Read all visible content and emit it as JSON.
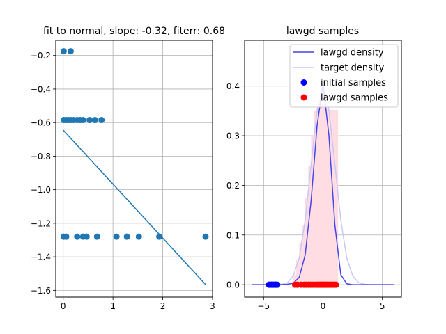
{
  "colors": {
    "scatter": "#1f77b4",
    "fit_line": "#1f77b4",
    "grid": "#b0b0b0",
    "lawgd_density": "#4444ee",
    "target_density": "#c8c8f8",
    "histogram_fill": "#ffdde2",
    "initial_samples": "#0000ff",
    "lawgd_samples": "#ff0000"
  },
  "chart_data": [
    {
      "type": "scatter",
      "title": "fit to normal, slope: -0.32, fiterr: 0.68",
      "xlabel": "",
      "ylabel": "",
      "xlim": [
        -0.15,
        3.0
      ],
      "ylim": [
        -1.64,
        -0.11
      ],
      "grid": true,
      "x_ticks": [
        0,
        1,
        2,
        3
      ],
      "x_tick_labels": [
        "0",
        "1",
        "2",
        "3"
      ],
      "y_ticks": [
        -0.2,
        -0.4,
        -0.6,
        -0.8,
        -1.0,
        -1.2,
        -1.4,
        -1.6
      ],
      "y_tick_labels": [
        "−0.2",
        "−0.4",
        "−0.6",
        "−0.8",
        "−1.0",
        "−1.2",
        "−1.4",
        "−1.6"
      ],
      "points": [
        [
          0.01,
          -0.175
        ],
        [
          0.15,
          -0.175
        ],
        [
          0.01,
          -0.585
        ],
        [
          0.06,
          -0.585
        ],
        [
          0.1,
          -0.585
        ],
        [
          0.15,
          -0.585
        ],
        [
          0.21,
          -0.585
        ],
        [
          0.28,
          -0.585
        ],
        [
          0.34,
          -0.585
        ],
        [
          0.4,
          -0.585
        ],
        [
          0.53,
          -0.585
        ],
        [
          0.64,
          -0.585
        ],
        [
          0.77,
          -0.585
        ],
        [
          0.01,
          -1.28
        ],
        [
          0.06,
          -1.28
        ],
        [
          0.28,
          -1.28
        ],
        [
          0.4,
          -1.28
        ],
        [
          0.47,
          -1.28
        ],
        [
          0.68,
          -1.28
        ],
        [
          1.07,
          -1.28
        ],
        [
          1.28,
          -1.28
        ],
        [
          1.52,
          -1.28
        ],
        [
          1.93,
          -1.28
        ],
        [
          2.86,
          -1.28
        ]
      ],
      "fit_line": {
        "x": [
          0.0,
          2.86
        ],
        "y": [
          -0.645,
          -1.565
        ]
      }
    },
    {
      "type": "line",
      "title": "lawgd samples",
      "xlabel": "",
      "ylabel": "",
      "xlim": [
        -6.6,
        6.6
      ],
      "ylim": [
        -0.025,
        0.492
      ],
      "grid": true,
      "legend_position": "top-right",
      "x_ticks": [
        -5,
        0,
        5
      ],
      "x_tick_labels": [
        "−5",
        "0",
        "5"
      ],
      "y_ticks": [
        0.0,
        0.1,
        0.2,
        0.3,
        0.4
      ],
      "y_tick_labels": [
        "0.0",
        "0.1",
        "0.2",
        "0.3",
        "0.4"
      ],
      "legend": [
        "lawgd density",
        "target density",
        "initial samples",
        "lawgd samples"
      ],
      "series": [
        {
          "name": "lawgd density",
          "x": [
            -6.0,
            -4.5,
            -4.0,
            -3.5,
            -3.0,
            -2.5,
            -2.0,
            -1.5,
            -1.0,
            -0.5,
            0.0,
            0.5,
            1.0,
            1.5,
            2.0,
            2.5,
            3.0,
            4.0,
            6.0
          ],
          "y": [
            0.0,
            0.0,
            0.0,
            0.0,
            0.001,
            0.003,
            0.015,
            0.06,
            0.17,
            0.32,
            0.405,
            0.3,
            0.12,
            0.02,
            0.002,
            0.0,
            0.0,
            0.0,
            0.0
          ]
        },
        {
          "name": "target density",
          "x": [
            -6.0,
            -4.0,
            -3.5,
            -3.0,
            -2.5,
            -2.0,
            -1.5,
            -1.0,
            -0.5,
            0.0,
            0.5,
            1.0,
            1.5,
            2.0,
            2.5,
            3.0,
            3.5,
            4.0,
            6.0
          ],
          "y": [
            0.0,
            0.0,
            0.001,
            0.004,
            0.018,
            0.054,
            0.13,
            0.242,
            0.352,
            0.399,
            0.352,
            0.242,
            0.13,
            0.054,
            0.018,
            0.004,
            0.001,
            0.0,
            0.0
          ]
        }
      ],
      "histogram": {
        "bin_edges": [
          -2.5,
          -2.25,
          -2.0,
          -1.75,
          -1.5,
          -1.25,
          -1.0,
          -0.75,
          -0.5,
          -0.25,
          0.0,
          0.25,
          0.5,
          0.75,
          1.0,
          1.25
        ],
        "heights": [
          0.02,
          0.05,
          0.085,
          0.12,
          0.175,
          0.24,
          0.3,
          0.35,
          0.37,
          0.38,
          0.39,
          0.37,
          0.352,
          0.352,
          0.352
        ]
      },
      "scatter_series": [
        {
          "name": "initial samples",
          "x": [
            -4.55,
            -4.48,
            -4.4,
            -4.32,
            -4.25,
            -4.18,
            -4.1,
            -4.05,
            -3.98,
            -3.9,
            -3.85
          ],
          "y": [
            0,
            0,
            0,
            0,
            0,
            0,
            0,
            0,
            0,
            0,
            0
          ]
        },
        {
          "name": "lawgd samples",
          "x": [
            -2.35,
            -2.15,
            -1.85,
            -1.6,
            -1.4,
            -1.2,
            -1.05,
            -0.9,
            -0.75,
            -0.6,
            -0.48,
            -0.36,
            -0.25,
            -0.14,
            -0.04,
            0.06,
            0.16,
            0.27,
            0.38,
            0.5,
            0.62,
            0.74,
            0.85,
            0.97,
            1.1
          ],
          "y": [
            0,
            0,
            0,
            0,
            0,
            0,
            0,
            0,
            0,
            0,
            0,
            0,
            0,
            0,
            0,
            0,
            0,
            0,
            0,
            0,
            0,
            0,
            0,
            0,
            0
          ]
        }
      ]
    }
  ]
}
